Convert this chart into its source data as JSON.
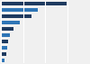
{
  "values": [
    38.5,
    22.0,
    18.0,
    11.0,
    7.5,
    5.5,
    4.5,
    3.8,
    3.0,
    2.0
  ],
  "bar_colors": [
    "#1e3a5f",
    "#2e75b6",
    "#1e3a5f",
    "#2e75b6",
    "#1e3a5f",
    "#2e75b6",
    "#1e3a5f",
    "#2e75b6",
    "#1e3a5f",
    "#2e75b6"
  ],
  "background_color": "#f0f0f0",
  "grid_color": "#ffffff",
  "xlim": [
    0,
    52
  ],
  "bar_height": 0.55,
  "figwidth": 1.0,
  "figheight": 0.71,
  "dpi": 100
}
